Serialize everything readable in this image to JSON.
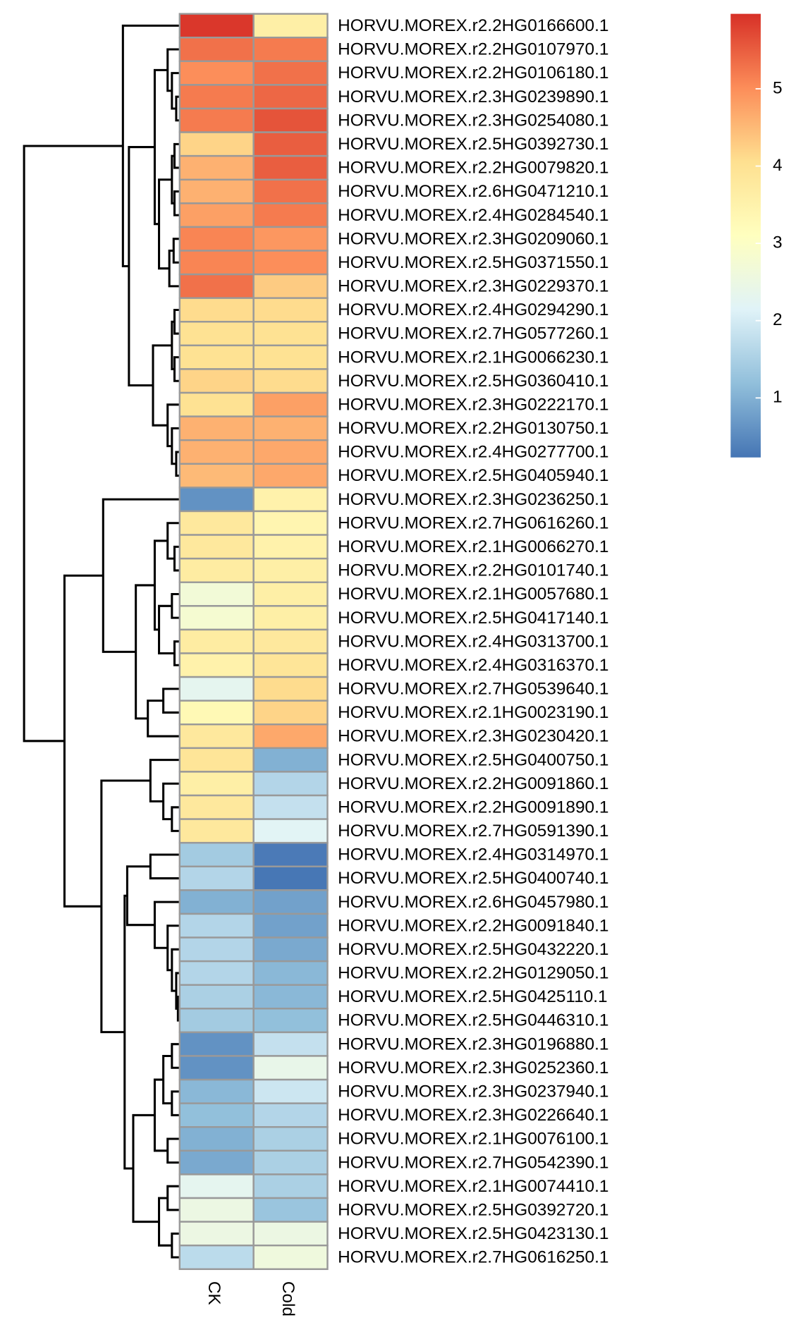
{
  "chart_data": {
    "type": "heatmap",
    "rows": [
      "HORVU.MOREX.r2.2HG0166600.1",
      "HORVU.MOREX.r2.2HG0107970.1",
      "HORVU.MOREX.r2.2HG0106180.1",
      "HORVU.MOREX.r2.3HG0239890.1",
      "HORVU.MOREX.r2.3HG0254080.1",
      "HORVU.MOREX.r2.5HG0392730.1",
      "HORVU.MOREX.r2.2HG0079820.1",
      "HORVU.MOREX.r2.6HG0471210.1",
      "HORVU.MOREX.r2.4HG0284540.1",
      "HORVU.MOREX.r2.3HG0209060.1",
      "HORVU.MOREX.r2.5HG0371550.1",
      "HORVU.MOREX.r2.3HG0229370.1",
      "HORVU.MOREX.r2.4HG0294290.1",
      "HORVU.MOREX.r2.7HG0577260.1",
      "HORVU.MOREX.r2.1HG0066230.1",
      "HORVU.MOREX.r2.5HG0360410.1",
      "HORVU.MOREX.r2.3HG0222170.1",
      "HORVU.MOREX.r2.2HG0130750.1",
      "HORVU.MOREX.r2.4HG0277700.1",
      "HORVU.MOREX.r2.5HG0405940.1",
      "HORVU.MOREX.r2.3HG0236250.1",
      "HORVU.MOREX.r2.7HG0616260.1",
      "HORVU.MOREX.r2.1HG0066270.1",
      "HORVU.MOREX.r2.2HG0101740.1",
      "HORVU.MOREX.r2.1HG0057680.1",
      "HORVU.MOREX.r2.5HG0417140.1",
      "HORVU.MOREX.r2.4HG0313700.1",
      "HORVU.MOREX.r2.4HG0316370.1",
      "HORVU.MOREX.r2.7HG0539640.1",
      "HORVU.MOREX.r2.1HG0023190.1",
      "HORVU.MOREX.r2.3HG0230420.1",
      "HORVU.MOREX.r2.5HG0400750.1",
      "HORVU.MOREX.r2.2HG0091860.1",
      "HORVU.MOREX.r2.2HG0091890.1",
      "HORVU.MOREX.r2.7HG0591390.1",
      "HORVU.MOREX.r2.4HG0314970.1",
      "HORVU.MOREX.r2.5HG0400740.1",
      "HORVU.MOREX.r2.6HG0457980.1",
      "HORVU.MOREX.r2.2HG0091840.1",
      "HORVU.MOREX.r2.5HG0432220.1",
      "HORVU.MOREX.r2.2HG0129050.1",
      "HORVU.MOREX.r2.5HG0425110.1",
      "HORVU.MOREX.r2.5HG0446310.1",
      "HORVU.MOREX.r2.3HG0196880.1",
      "HORVU.MOREX.r2.3HG0252360.1",
      "HORVU.MOREX.r2.3HG0237940.1",
      "HORVU.MOREX.r2.3HG0226640.1",
      "HORVU.MOREX.r2.1HG0076100.1",
      "HORVU.MOREX.r2.7HG0542390.1",
      "HORVU.MOREX.r2.1HG0074410.1",
      "HORVU.MOREX.r2.5HG0392720.1",
      "HORVU.MOREX.r2.5HG0423130.1",
      "HORVU.MOREX.r2.7HG0616250.1"
    ],
    "columns": [
      "CK",
      "Cold"
    ],
    "values": [
      [
        5.9,
        3.6
      ],
      [
        5.3,
        5.2
      ],
      [
        5.0,
        5.3
      ],
      [
        5.2,
        5.4
      ],
      [
        5.2,
        5.6
      ],
      [
        4.2,
        5.5
      ],
      [
        4.6,
        5.5
      ],
      [
        4.6,
        5.3
      ],
      [
        4.8,
        5.2
      ],
      [
        5.1,
        4.9
      ],
      [
        5.1,
        5.0
      ],
      [
        5.3,
        4.3
      ],
      [
        4.1,
        4.1
      ],
      [
        4.0,
        4.0
      ],
      [
        4.0,
        4.0
      ],
      [
        4.2,
        4.1
      ],
      [
        4.0,
        4.8
      ],
      [
        4.6,
        4.6
      ],
      [
        4.6,
        4.7
      ],
      [
        4.5,
        4.7
      ],
      [
        0.6,
        3.5
      ],
      [
        3.8,
        3.4
      ],
      [
        3.8,
        3.5
      ],
      [
        3.7,
        3.6
      ],
      [
        2.7,
        3.6
      ],
      [
        2.8,
        3.6
      ],
      [
        3.7,
        3.8
      ],
      [
        3.5,
        3.9
      ],
      [
        2.3,
        4.1
      ],
      [
        3.3,
        4.2
      ],
      [
        3.8,
        4.7
      ],
      [
        3.9,
        1.0
      ],
      [
        3.6,
        1.6
      ],
      [
        3.8,
        1.8
      ],
      [
        3.8,
        2.2
      ],
      [
        1.4,
        0.3
      ],
      [
        1.6,
        0.25
      ],
      [
        1.0,
        0.8
      ],
      [
        1.6,
        0.8
      ],
      [
        1.6,
        0.9
      ],
      [
        1.6,
        1.1
      ],
      [
        1.5,
        1.1
      ],
      [
        1.4,
        1.2
      ],
      [
        0.6,
        1.8
      ],
      [
        0.6,
        2.4
      ],
      [
        1.1,
        1.9
      ],
      [
        1.2,
        1.6
      ],
      [
        1.0,
        1.5
      ],
      [
        0.9,
        1.5
      ],
      [
        2.3,
        1.5
      ],
      [
        2.5,
        1.3
      ],
      [
        2.5,
        2.5
      ],
      [
        1.7,
        2.6
      ]
    ],
    "colors": [
      "#4575B4",
      "#91BFDB",
      "#E0F3F8",
      "#FFFFBF",
      "#FEE090",
      "#FC8D59",
      "#D73027"
    ],
    "zlim": [
      0.23,
      5.97
    ],
    "zticks": [
      1,
      2,
      3,
      4,
      5
    ]
  }
}
